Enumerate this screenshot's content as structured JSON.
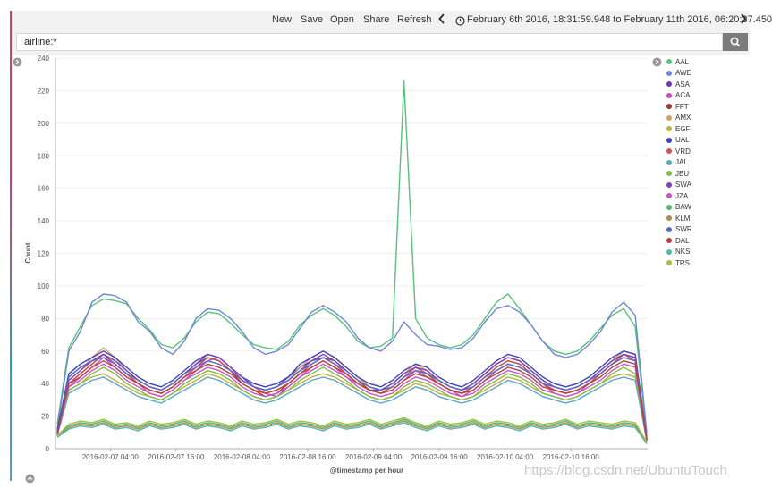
{
  "toolbar": {
    "new_label": "New",
    "save_label": "Save",
    "open_label": "Open",
    "share_label": "Share",
    "refresh_label": "Refresh",
    "prev_icon": "chevron-left-icon",
    "next_icon": "chevron-right-icon",
    "time_range": "February 6th 2016, 18:31:59.948 to February 11th 2016, 06:20:37.450"
  },
  "search": {
    "query": "airline:*",
    "button_icon": "search-icon"
  },
  "colors": {
    "accent_top": "#d63c6a",
    "accent_bottom": "#2c9fb4"
  },
  "chart_data": {
    "type": "line",
    "title": "",
    "xlabel": "@timestamp per hour",
    "ylabel": "Count",
    "ylim": [
      0,
      240
    ],
    "yticks": [
      0,
      20,
      40,
      60,
      80,
      100,
      120,
      140,
      160,
      180,
      200,
      220,
      240
    ],
    "xlim": [
      "2016-02-06 18:00",
      "2016-02-11 06:00"
    ],
    "xticks": [
      "2016-02-07 04:00",
      "2016-02-07 16:00",
      "2016-02-08 04:00",
      "2016-02-08 16:00",
      "2016-02-09 04:00",
      "2016-02-09 16:00",
      "2016-02-10 04:00",
      "2016-02-10 16:00"
    ],
    "grid": true,
    "legend_position": "right",
    "series": [
      {
        "name": "AAL",
        "color": "#57c17b",
        "values": [
          15,
          62,
          75,
          88,
          92,
          91,
          89,
          80,
          73,
          64,
          62,
          68,
          78,
          84,
          83,
          77,
          70,
          64,
          62,
          61,
          66,
          76,
          82,
          86,
          82,
          75,
          66,
          62,
          63,
          68,
          226,
          80,
          68,
          64,
          62,
          64,
          70,
          80,
          90,
          95,
          86,
          76,
          66,
          60,
          58,
          60,
          66,
          74,
          82,
          86,
          75,
          8
        ]
      },
      {
        "name": "AWE",
        "color": "#6f87d8",
        "values": [
          12,
          60,
          72,
          90,
          95,
          94,
          90,
          78,
          72,
          62,
          58,
          66,
          80,
          86,
          85,
          80,
          72,
          62,
          58,
          60,
          64,
          74,
          84,
          88,
          84,
          78,
          68,
          62,
          60,
          66,
          78,
          70,
          64,
          63,
          61,
          62,
          68,
          78,
          86,
          88,
          84,
          76,
          66,
          58,
          56,
          58,
          64,
          72,
          84,
          90,
          82,
          10
        ]
      },
      {
        "name": "ASA",
        "color": "#663db8",
        "values": [
          10,
          44,
          50,
          54,
          58,
          54,
          48,
          42,
          38,
          36,
          40,
          46,
          52,
          56,
          54,
          48,
          42,
          38,
          36,
          38,
          44,
          50,
          54,
          56,
          52,
          46,
          40,
          36,
          36,
          40,
          46,
          50,
          46,
          42,
          38,
          36,
          40,
          46,
          52,
          56,
          54,
          48,
          42,
          38,
          36,
          38,
          42,
          48,
          54,
          58,
          56,
          6
        ]
      },
      {
        "name": "ACA",
        "color": "#bc52bc",
        "values": [
          9,
          38,
          44,
          50,
          56,
          50,
          44,
          40,
          34,
          32,
          36,
          42,
          48,
          54,
          56,
          50,
          42,
          38,
          34,
          32,
          38,
          44,
          50,
          54,
          50,
          44,
          40,
          36,
          34,
          36,
          42,
          48,
          44,
          40,
          36,
          32,
          36,
          42,
          48,
          52,
          50,
          46,
          40,
          34,
          32,
          34,
          40,
          46,
          52,
          56,
          54,
          7
        ]
      },
      {
        "name": "FFT",
        "color": "#9e3533",
        "values": [
          8,
          40,
          46,
          52,
          58,
          52,
          46,
          40,
          36,
          34,
          38,
          44,
          50,
          56,
          54,
          48,
          40,
          36,
          32,
          34,
          40,
          46,
          52,
          56,
          54,
          48,
          42,
          36,
          34,
          38,
          44,
          48,
          46,
          40,
          36,
          34,
          38,
          44,
          50,
          54,
          52,
          46,
          40,
          36,
          34,
          36,
          40,
          46,
          52,
          58,
          56,
          5
        ]
      },
      {
        "name": "AMX",
        "color": "#daa05d",
        "values": [
          10,
          42,
          48,
          56,
          62,
          56,
          48,
          42,
          38,
          36,
          40,
          46,
          52,
          58,
          56,
          50,
          44,
          38,
          36,
          38,
          42,
          50,
          56,
          60,
          56,
          50,
          44,
          38,
          36,
          40,
          46,
          52,
          48,
          42,
          38,
          36,
          40,
          46,
          52,
          56,
          54,
          48,
          42,
          38,
          36,
          38,
          42,
          48,
          54,
          60,
          58,
          6
        ]
      },
      {
        "name": "EGF",
        "color": "#bfaf40",
        "values": [
          9,
          36,
          40,
          44,
          46,
          42,
          38,
          34,
          32,
          30,
          34,
          38,
          42,
          46,
          44,
          40,
          36,
          32,
          30,
          32,
          36,
          40,
          44,
          46,
          44,
          40,
          36,
          32,
          30,
          32,
          36,
          40,
          38,
          34,
          32,
          30,
          32,
          36,
          40,
          44,
          42,
          38,
          34,
          32,
          30,
          32,
          36,
          40,
          44,
          46,
          44,
          5
        ]
      },
      {
        "name": "UAL",
        "color": "#4040bf",
        "values": [
          11,
          46,
          52,
          56,
          60,
          56,
          50,
          44,
          40,
          38,
          42,
          48,
          54,
          58,
          56,
          50,
          44,
          40,
          38,
          40,
          44,
          52,
          56,
          60,
          56,
          50,
          44,
          40,
          38,
          42,
          48,
          52,
          50,
          44,
          40,
          38,
          42,
          48,
          54,
          58,
          56,
          50,
          44,
          40,
          38,
          40,
          44,
          50,
          56,
          60,
          58,
          6
        ]
      },
      {
        "name": "VRD",
        "color": "#d05454",
        "values": [
          9,
          40,
          46,
          52,
          58,
          52,
          46,
          40,
          36,
          34,
          38,
          44,
          50,
          56,
          54,
          48,
          42,
          38,
          34,
          36,
          40,
          46,
          52,
          56,
          52,
          46,
          40,
          36,
          34,
          38,
          44,
          50,
          46,
          40,
          36,
          34,
          38,
          44,
          50,
          54,
          52,
          46,
          40,
          36,
          34,
          36,
          40,
          46,
          52,
          58,
          54,
          5
        ]
      },
      {
        "name": "JAL",
        "color": "#59a7c7",
        "values": [
          8,
          34,
          38,
          42,
          44,
          40,
          36,
          32,
          30,
          28,
          32,
          36,
          40,
          44,
          42,
          38,
          34,
          30,
          28,
          30,
          34,
          38,
          42,
          44,
          42,
          38,
          34,
          30,
          28,
          30,
          34,
          38,
          36,
          32,
          30,
          28,
          30,
          34,
          38,
          42,
          40,
          36,
          32,
          30,
          28,
          30,
          34,
          38,
          42,
          44,
          42,
          5
        ]
      },
      {
        "name": "JBU",
        "color": "#88bb44",
        "values": [
          9,
          36,
          40,
          46,
          50,
          46,
          40,
          36,
          32,
          30,
          34,
          40,
          44,
          48,
          46,
          42,
          36,
          32,
          30,
          32,
          36,
          42,
          46,
          50,
          46,
          42,
          36,
          32,
          30,
          32,
          38,
          42,
          40,
          36,
          32,
          30,
          32,
          38,
          42,
          46,
          44,
          40,
          34,
          32,
          30,
          32,
          36,
          40,
          46,
          50,
          46,
          5
        ]
      },
      {
        "name": "SWA",
        "color": "#7d44b8",
        "values": [
          10,
          42,
          48,
          54,
          58,
          54,
          48,
          42,
          38,
          36,
          40,
          46,
          52,
          58,
          56,
          50,
          44,
          38,
          36,
          38,
          42,
          48,
          54,
          58,
          54,
          48,
          42,
          38,
          36,
          40,
          46,
          50,
          48,
          42,
          38,
          36,
          40,
          46,
          52,
          56,
          54,
          48,
          42,
          38,
          36,
          38,
          42,
          48,
          54,
          58,
          56,
          6
        ]
      },
      {
        "name": "JZA",
        "color": "#c358c3",
        "values": [
          9,
          38,
          42,
          48,
          52,
          48,
          42,
          38,
          34,
          32,
          36,
          42,
          46,
          50,
          48,
          44,
          38,
          34,
          32,
          34,
          38,
          44,
          48,
          52,
          48,
          44,
          38,
          34,
          32,
          34,
          40,
          44,
          42,
          38,
          34,
          32,
          34,
          40,
          44,
          48,
          46,
          42,
          36,
          34,
          32,
          34,
          38,
          42,
          48,
          52,
          50,
          5
        ]
      },
      {
        "name": "BAW",
        "color": "#56b870",
        "values": [
          8,
          14,
          16,
          15,
          17,
          14,
          15,
          13,
          16,
          14,
          15,
          17,
          14,
          16,
          15,
          13,
          16,
          14,
          15,
          17,
          14,
          16,
          15,
          13,
          16,
          14,
          15,
          17,
          14,
          16,
          18,
          15,
          13,
          16,
          14,
          15,
          17,
          14,
          16,
          15,
          13,
          16,
          14,
          15,
          17,
          14,
          16,
          15,
          14,
          16,
          15,
          4
        ]
      },
      {
        "name": "KLM",
        "color": "#b08a4c",
        "values": [
          7,
          13,
          15,
          14,
          16,
          13,
          14,
          12,
          15,
          13,
          14,
          16,
          13,
          15,
          14,
          12,
          15,
          13,
          14,
          16,
          13,
          15,
          14,
          12,
          15,
          13,
          14,
          16,
          13,
          15,
          17,
          14,
          12,
          15,
          13,
          14,
          16,
          13,
          15,
          14,
          12,
          15,
          13,
          14,
          16,
          13,
          15,
          14,
          13,
          15,
          14,
          3
        ]
      },
      {
        "name": "SWR",
        "color": "#4f6fc7",
        "values": [
          8,
          44,
          50,
          54,
          56,
          52,
          46,
          42,
          38,
          36,
          40,
          46,
          50,
          54,
          52,
          48,
          42,
          38,
          36,
          38,
          42,
          48,
          52,
          56,
          52,
          48,
          42,
          38,
          36,
          38,
          44,
          48,
          46,
          42,
          38,
          36,
          38,
          44,
          48,
          52,
          50,
          46,
          40,
          38,
          36,
          38,
          42,
          46,
          52,
          56,
          54,
          5
        ]
      },
      {
        "name": "DAL",
        "color": "#c03d3d",
        "values": [
          9,
          40,
          44,
          50,
          54,
          50,
          44,
          40,
          36,
          34,
          38,
          44,
          48,
          52,
          50,
          46,
          40,
          36,
          34,
          36,
          40,
          46,
          50,
          54,
          50,
          46,
          40,
          36,
          34,
          36,
          42,
          46,
          44,
          40,
          36,
          34,
          36,
          42,
          46,
          50,
          48,
          44,
          38,
          36,
          34,
          36,
          40,
          44,
          50,
          54,
          52,
          5
        ]
      },
      {
        "name": "NKS",
        "color": "#52b5b5",
        "values": [
          7,
          12,
          14,
          13,
          15,
          12,
          13,
          11,
          14,
          12,
          13,
          15,
          12,
          14,
          13,
          11,
          14,
          12,
          13,
          15,
          12,
          14,
          13,
          11,
          14,
          12,
          13,
          15,
          12,
          14,
          16,
          13,
          11,
          14,
          12,
          13,
          15,
          12,
          14,
          13,
          11,
          14,
          12,
          13,
          15,
          12,
          14,
          13,
          12,
          14,
          13,
          3
        ]
      },
      {
        "name": "TRS",
        "color": "#9cc346",
        "values": [
          8,
          15,
          17,
          16,
          18,
          15,
          16,
          14,
          17,
          15,
          16,
          18,
          15,
          17,
          16,
          14,
          17,
          15,
          16,
          18,
          15,
          17,
          16,
          14,
          17,
          15,
          16,
          18,
          15,
          17,
          19,
          16,
          14,
          17,
          15,
          16,
          18,
          15,
          17,
          16,
          14,
          17,
          15,
          16,
          18,
          15,
          17,
          16,
          15,
          17,
          16,
          4
        ]
      }
    ]
  },
  "watermark": "https://blog.csdn.net/UbuntuTouch"
}
